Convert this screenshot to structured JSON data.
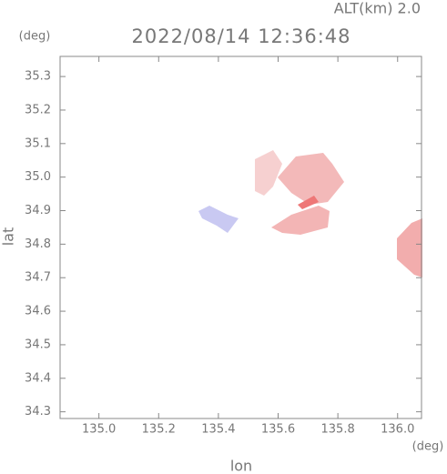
{
  "chart_data": {
    "type": "map",
    "title": "2022/08/14 12:36:48",
    "subtitle": "ALT(km) 2.0",
    "x_label": "lon",
    "y_label": "lat",
    "x_unit": "(deg)",
    "y_unit": "(deg)",
    "xlim": [
      134.87,
      136.08
    ],
    "ylim": [
      34.28,
      35.36
    ],
    "xticks": [
      {
        "value": 135,
        "label": "135.0"
      },
      135.2,
      135.4,
      135.6,
      135.8,
      {
        "value": 136,
        "label": "136.0"
      }
    ],
    "yticks": [
      35.3,
      35.2,
      35.1,
      {
        "value": 35,
        "label": "35.0"
      },
      34.9,
      34.8,
      34.7,
      34.6,
      34.5,
      34.4,
      34.3
    ]
  }
}
